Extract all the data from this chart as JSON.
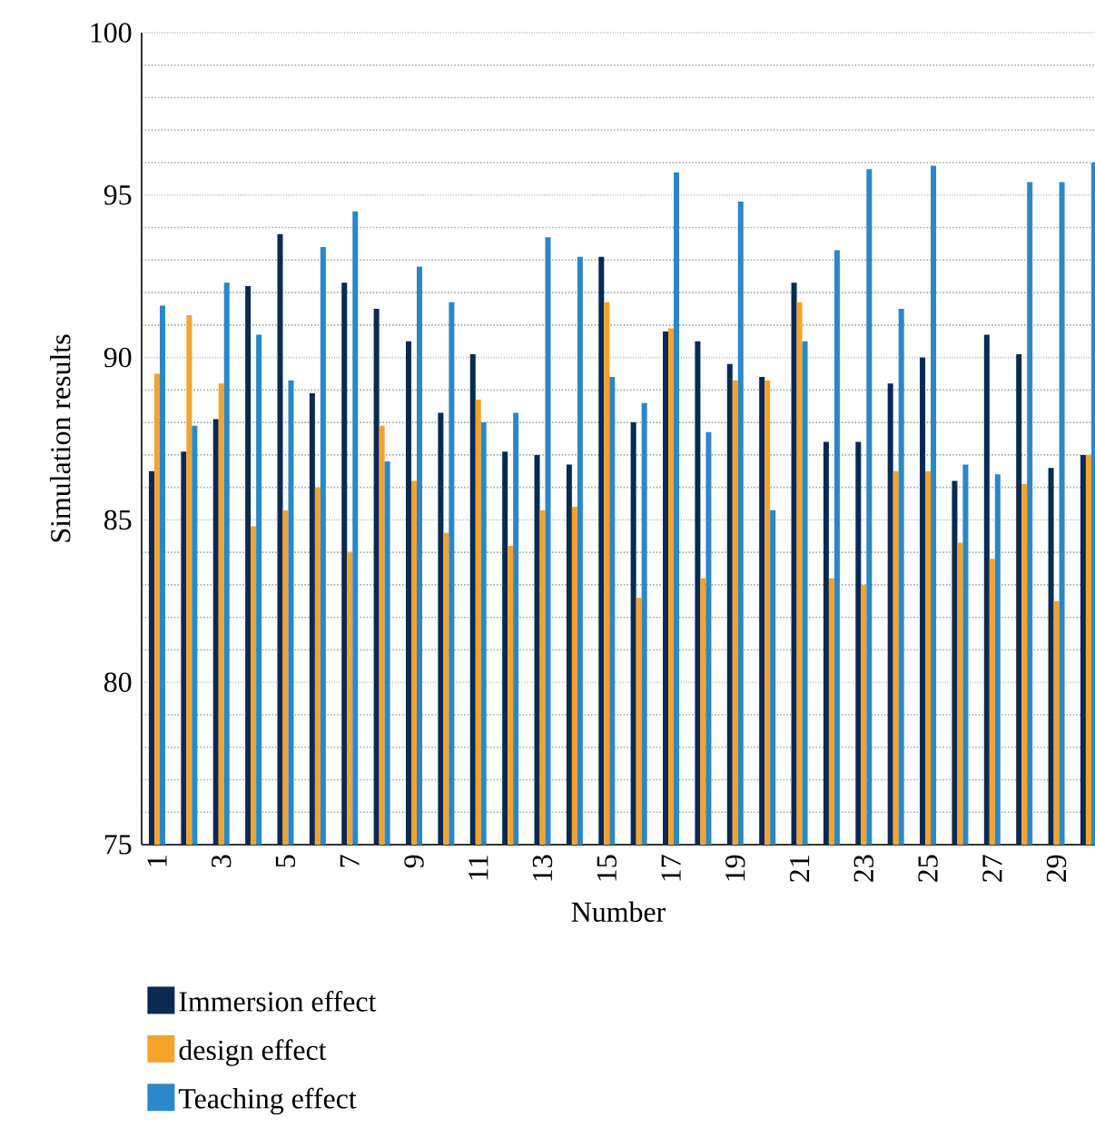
{
  "chart_data": {
    "type": "bar",
    "xlabel": "Number",
    "ylabel": "Simulation results",
    "categories": [
      "1",
      null,
      "3",
      null,
      "5",
      null,
      "7",
      null,
      "9",
      null,
      "11",
      null,
      "13",
      null,
      "15",
      null,
      "17",
      null,
      "19",
      null,
      "21",
      null,
      "23",
      null,
      "25",
      null,
      "27",
      null,
      "29",
      null
    ],
    "series": [
      {
        "name": "Immersion effect",
        "color": "#0a2a52",
        "values": [
          86.5,
          87.1,
          88.1,
          92.2,
          93.8,
          88.9,
          92.3,
          91.5,
          90.5,
          88.3,
          90.1,
          87.1,
          87.0,
          86.7,
          93.1,
          88.0,
          90.8,
          90.5,
          89.8,
          89.4,
          92.3,
          87.4,
          87.4,
          89.2,
          90.0,
          86.2,
          90.7,
          90.1,
          86.6,
          87.0
        ]
      },
      {
        "name": "design effect",
        "color": "#f7a22b",
        "values": [
          89.5,
          91.3,
          89.2,
          84.8,
          85.3,
          86.0,
          84.0,
          87.9,
          86.2,
          84.6,
          88.7,
          84.2,
          85.3,
          85.4,
          91.7,
          82.6,
          90.9,
          83.2,
          89.3,
          89.3,
          91.7,
          83.2,
          83.0,
          86.5,
          86.5,
          84.3,
          83.8,
          86.1,
          82.5,
          87.0
        ]
      },
      {
        "name": "Teaching effect",
        "color": "#2a88c8",
        "values": [
          91.6,
          87.9,
          92.3,
          90.7,
          89.3,
          93.4,
          94.5,
          86.8,
          92.8,
          91.7,
          88.0,
          88.3,
          93.7,
          93.1,
          89.4,
          88.6,
          95.7,
          87.7,
          94.8,
          85.3,
          90.5,
          93.3,
          95.8,
          91.5,
          95.9,
          86.7,
          86.4,
          95.4,
          95.4,
          96.0
        ]
      }
    ],
    "ylim": [
      75,
      100
    ],
    "yticks": [
      75,
      80,
      85,
      90,
      95,
      100
    ],
    "grid": "y",
    "legend": "bottom"
  }
}
